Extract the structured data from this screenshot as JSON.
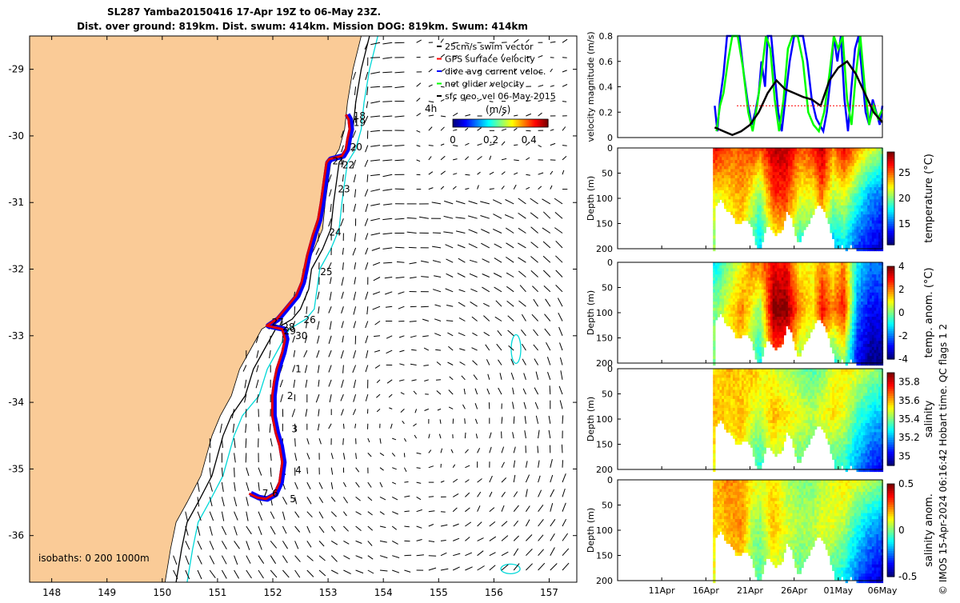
{
  "header": {
    "title_line1": "SL287 Yamba20150416 17-Apr 19Z to 06-May 23Z.",
    "title_line2": "Dist. over ground: 819km. Dist. swum: 414km. Mission DOG: 819km. Swum: 414km"
  },
  "credit": "© IMOS 15-Apr-2024 06:16:42 Hobart time. QC flags 1  2",
  "colors": {
    "land": "#FACB97",
    "isobath_200": "#000000",
    "isobath_1000": "#00D8D8",
    "track_blue": "#0000FF",
    "track_red": "#E00000",
    "gps": "#FF0000",
    "dive_avg": "#0000FF",
    "net_glider": "#00FF00",
    "sfc_geo": "#000000"
  },
  "chart_data": [
    {
      "type": "map",
      "name": "glider-track-map",
      "xlim": [
        147.6,
        157.5
      ],
      "ylim": [
        -36.7,
        -28.5
      ],
      "x_ticks": [
        148,
        149,
        150,
        151,
        152,
        153,
        154,
        155,
        156,
        157
      ],
      "y_ticks": [
        -29,
        -30,
        -31,
        -32,
        -33,
        -34,
        -35,
        -36
      ],
      "legend": [
        "25cm/s swim vector",
        "GPS surface velocity",
        "dive avg current veloc.",
        "net glider velocity",
        "sfc geo. vel 06-May-2015"
      ],
      "colorbar": {
        "label": "(m/s)",
        "ticks": [
          "0",
          "0.2",
          "0.4"
        ],
        "range": [
          0,
          0.5
        ]
      },
      "isobaths_label": "isobaths: 0   200  1000m",
      "extra_label": "4h",
      "day_labels": [
        {
          "t": "18",
          "lon": 153.4,
          "lat": -29.7
        },
        {
          "t": "19",
          "lon": 153.4,
          "lat": -29.8
        },
        {
          "t": "20",
          "lon": 153.34,
          "lat": -30.17
        },
        {
          "t": "21",
          "lon": 153.02,
          "lat": -30.38
        },
        {
          "t": "22",
          "lon": 153.2,
          "lat": -30.44
        },
        {
          "t": "23",
          "lon": 153.12,
          "lat": -30.8
        },
        {
          "t": "24",
          "lon": 152.96,
          "lat": -31.45
        },
        {
          "t": "25",
          "lon": 152.8,
          "lat": -32.04
        },
        {
          "t": "26",
          "lon": 152.5,
          "lat": -32.76
        },
        {
          "t": "27",
          "lon": 151.92,
          "lat": -32.8
        },
        {
          "t": "28",
          "lon": 152.12,
          "lat": -32.87
        },
        {
          "t": "29",
          "lon": 152.14,
          "lat": -32.93
        },
        {
          "t": "30",
          "lon": 152.35,
          "lat": -33.0
        },
        {
          "t": "1",
          "lon": 152.35,
          "lat": -33.5
        },
        {
          "t": "2",
          "lon": 152.2,
          "lat": -33.9
        },
        {
          "t": "3",
          "lon": 152.28,
          "lat": -34.4
        },
        {
          "t": "4",
          "lon": 152.35,
          "lat": -35.02
        },
        {
          "t": "5",
          "lon": 152.25,
          "lat": -35.45
        },
        {
          "t": "6",
          "lon": 151.93,
          "lat": -35.37
        },
        {
          "t": "7",
          "lon": 151.75,
          "lat": -35.37
        }
      ],
      "track": [
        [
          153.35,
          -29.68
        ],
        [
          153.4,
          -29.75
        ],
        [
          153.42,
          -29.9
        ],
        [
          153.38,
          -30.05
        ],
        [
          153.35,
          -30.2
        ],
        [
          153.28,
          -30.3
        ],
        [
          153.05,
          -30.35
        ],
        [
          153.0,
          -30.4
        ],
        [
          152.95,
          -30.7
        ],
        [
          152.9,
          -31.0
        ],
        [
          152.85,
          -31.25
        ],
        [
          152.75,
          -31.5
        ],
        [
          152.65,
          -31.8
        ],
        [
          152.6,
          -32.0
        ],
        [
          152.55,
          -32.2
        ],
        [
          152.45,
          -32.4
        ],
        [
          152.25,
          -32.6
        ],
        [
          152.1,
          -32.75
        ],
        [
          151.92,
          -32.85
        ],
        [
          152.2,
          -32.9
        ],
        [
          152.25,
          -33.05
        ],
        [
          152.2,
          -33.25
        ],
        [
          152.1,
          -33.5
        ],
        [
          152.05,
          -33.7
        ],
        [
          152.02,
          -33.9
        ],
        [
          152.02,
          -34.2
        ],
        [
          152.08,
          -34.45
        ],
        [
          152.15,
          -34.65
        ],
        [
          152.2,
          -34.9
        ],
        [
          152.15,
          -35.2
        ],
        [
          152.05,
          -35.38
        ],
        [
          151.9,
          -35.45
        ],
        [
          151.75,
          -35.43
        ],
        [
          151.6,
          -35.37
        ]
      ]
    },
    {
      "type": "line",
      "name": "velocity-magnitude",
      "ylabel": "velocity magnitude (m/s)",
      "xlim": [
        6,
        36
      ],
      "ylim": [
        0,
        0.8
      ],
      "y_ticks": [
        "0",
        "0.2",
        "0.4",
        "0.6",
        "0.8"
      ],
      "series": [
        {
          "color": "#0000FF",
          "x": [
            17.0,
            17.3,
            17.6,
            18.0,
            18.4,
            18.8,
            19.2,
            19.8,
            20.3,
            20.8,
            21.2,
            21.6,
            22.0,
            22.3,
            22.7,
            23.0,
            23.4,
            23.8,
            24.2,
            24.6,
            25.0,
            25.5,
            26.0,
            26.5,
            27.0,
            27.5,
            28.0,
            28.5,
            28.9,
            29.3,
            29.7,
            30.1,
            30.5,
            30.9,
            31.3,
            31.7,
            32.1,
            32.5,
            32.9,
            33.3,
            33.7,
            34.1,
            34.5,
            34.9,
            35.3,
            35.7,
            36.0
          ],
          "y": [
            0.25,
            0.05,
            0.3,
            0.5,
            0.8,
            0.8,
            0.8,
            0.8,
            0.5,
            0.25,
            0.1,
            0.2,
            0.35,
            0.6,
            0.4,
            0.8,
            0.8,
            0.5,
            0.2,
            0.05,
            0.3,
            0.6,
            0.8,
            0.8,
            0.8,
            0.6,
            0.3,
            0.15,
            0.1,
            0.05,
            0.2,
            0.45,
            0.8,
            0.6,
            0.8,
            0.3,
            0.05,
            0.4,
            0.7,
            0.8,
            0.5,
            0.2,
            0.1,
            0.3,
            0.2,
            0.1,
            0.25
          ]
        },
        {
          "color": "#00FF00",
          "x": [
            17.2,
            17.6,
            18.0,
            18.5,
            19.0,
            19.6,
            20.2,
            20.8,
            21.3,
            21.8,
            22.3,
            22.8,
            23.3,
            23.8,
            24.3,
            24.8,
            25.3,
            25.8,
            26.4,
            27.0,
            27.6,
            28.2,
            28.8,
            29.4,
            30.0,
            30.5,
            31.0,
            31.5,
            32.0,
            32.5,
            33.0,
            33.5,
            34.0,
            34.5,
            35.0,
            35.5,
            36.0
          ],
          "y": [
            0.05,
            0.25,
            0.35,
            0.6,
            0.8,
            0.8,
            0.55,
            0.2,
            0.05,
            0.25,
            0.5,
            0.8,
            0.7,
            0.3,
            0.05,
            0.3,
            0.7,
            0.8,
            0.8,
            0.6,
            0.2,
            0.1,
            0.05,
            0.2,
            0.5,
            0.8,
            0.7,
            0.8,
            0.3,
            0.1,
            0.5,
            0.8,
            0.4,
            0.1,
            0.25,
            0.15,
            0.22
          ]
        },
        {
          "color": "#000000",
          "x": [
            17.0,
            18.0,
            19.0,
            20.0,
            21.0,
            22.0,
            23.0,
            24.0,
            25.0,
            26.0,
            27.0,
            28.0,
            29.0,
            30.0,
            31.0,
            32.0,
            33.0,
            34.0,
            35.0,
            36.0
          ],
          "y": [
            0.08,
            0.05,
            0.02,
            0.05,
            0.1,
            0.2,
            0.35,
            0.45,
            0.38,
            0.35,
            0.32,
            0.3,
            0.25,
            0.45,
            0.55,
            0.6,
            0.5,
            0.35,
            0.2,
            0.12
          ]
        },
        {
          "color": "#FF0000",
          "dotted": true,
          "x": [
            19.5,
            20.5,
            21.5,
            22.5,
            23.5,
            24.5,
            25.5,
            26.5,
            27.5,
            28.5,
            29.5,
            30.5,
            31.5,
            32.5,
            33.5,
            34.5,
            35.5
          ],
          "y": [
            0.25,
            0.25,
            0.25,
            0.25,
            0.25,
            0.25,
            0.25,
            0.25,
            0.25,
            0.25,
            0.25,
            0.25,
            0.25,
            0.25,
            0.25,
            0.25,
            0.25
          ]
        }
      ]
    },
    {
      "type": "heatmap",
      "name": "temperature-section",
      "ylabel": "Depth (m)",
      "cbar_label": "temperature (°C)",
      "cbar_ticks": [
        "25",
        "20",
        "15"
      ],
      "vmin": 11,
      "vmax": 29,
      "cmap": "jet"
    },
    {
      "type": "heatmap",
      "name": "temperature-anomaly-section",
      "ylabel": "Depth (m)",
      "cbar_label": "temp. anom. (°C)",
      "cbar_ticks": [
        "4",
        "2",
        "0",
        "-2",
        "-4"
      ],
      "vmin": -4,
      "vmax": 4,
      "cmap": "jet"
    },
    {
      "type": "heatmap",
      "name": "salinity-section",
      "ylabel": "Depth (m)",
      "cbar_label": "salinity",
      "cbar_ticks": [
        "35.8",
        "35.6",
        "35.4",
        "35.2",
        "35"
      ],
      "vmin": 34.9,
      "vmax": 35.9,
      "cmap": "jet"
    },
    {
      "type": "heatmap",
      "name": "salinity-anomaly-section",
      "ylabel": "Depth (m)",
      "cbar_label": "salinity anom.",
      "cbar_ticks": [
        "0.5",
        "0",
        "-0.5"
      ],
      "vmin": -0.5,
      "vmax": 0.5,
      "cmap": "jet"
    }
  ],
  "sections": {
    "depth_ticks": [
      "0",
      "50",
      "100",
      "150",
      "200"
    ],
    "time_ticks": [
      "11Apr",
      "16Apr",
      "21Apr",
      "26Apr",
      "01May",
      "06May"
    ],
    "time_tick_days": [
      11,
      16,
      21,
      26,
      31,
      36
    ],
    "xlim_days": [
      6,
      36
    ],
    "data_start_day": 16.8,
    "max_depth": [
      [
        17,
        110
      ],
      [
        17.6,
        100
      ],
      [
        18.2,
        120
      ],
      [
        18.8,
        130
      ],
      [
        19.5,
        150
      ],
      [
        20.3,
        140
      ],
      [
        21.0,
        150
      ],
      [
        21.6,
        190
      ],
      [
        22.0,
        200
      ],
      [
        22.3,
        185
      ],
      [
        22.7,
        150
      ],
      [
        23.3,
        160
      ],
      [
        23.9,
        170
      ],
      [
        24.5,
        160
      ],
      [
        25.1,
        120
      ],
      [
        25.6,
        140
      ],
      [
        26.0,
        170
      ],
      [
        26.4,
        190
      ],
      [
        26.9,
        165
      ],
      [
        27.4,
        150
      ],
      [
        28.0,
        130
      ],
      [
        28.6,
        110
      ],
      [
        29.2,
        120
      ],
      [
        29.8,
        150
      ],
      [
        30.3,
        180
      ],
      [
        30.7,
        200
      ],
      [
        31.2,
        190
      ],
      [
        31.8,
        200
      ],
      [
        32.4,
        190
      ],
      [
        33.0,
        200
      ],
      [
        33.6,
        200
      ],
      [
        34.3,
        200
      ],
      [
        35.0,
        200
      ],
      [
        35.6,
        200
      ]
    ],
    "temp_samples": [
      {
        "d": 17.0,
        "s": 27,
        "m": 22,
        "b": 20
      },
      {
        "d": 18.5,
        "s": 25,
        "m": 23,
        "b": 21
      },
      {
        "d": 20.0,
        "s": 25,
        "m": 24,
        "b": 22
      },
      {
        "d": 21.0,
        "s": 26,
        "m": 22,
        "b": 19
      },
      {
        "d": 22.0,
        "s": 25,
        "m": 20,
        "b": 17
      },
      {
        "d": 23.5,
        "s": 28,
        "m": 26,
        "b": 21
      },
      {
        "d": 25.0,
        "s": 28,
        "m": 26,
        "b": 22
      },
      {
        "d": 26.5,
        "s": 25,
        "m": 22,
        "b": 18
      },
      {
        "d": 28.0,
        "s": 26,
        "m": 22,
        "b": 19
      },
      {
        "d": 29.0,
        "s": 28,
        "m": 25,
        "b": 20
      },
      {
        "d": 30.3,
        "s": 24,
        "m": 21,
        "b": 16
      },
      {
        "d": 31.5,
        "s": 27,
        "m": 22,
        "b": 17
      },
      {
        "d": 33.0,
        "s": 24,
        "m": 19,
        "b": 14
      },
      {
        "d": 34.5,
        "s": 22,
        "m": 16,
        "b": 13
      },
      {
        "d": 36.0,
        "s": 20,
        "m": 15,
        "b": 12
      }
    ],
    "tanom_samples": [
      {
        "d": 17.0,
        "s": -1,
        "m": 0,
        "b": 0
      },
      {
        "d": 18.5,
        "s": 0,
        "m": 1,
        "b": 1
      },
      {
        "d": 20.0,
        "s": 1,
        "m": 2,
        "b": 1
      },
      {
        "d": 21.0,
        "s": 2,
        "m": 1,
        "b": 0
      },
      {
        "d": 22.0,
        "s": 2,
        "m": 0,
        "b": -1
      },
      {
        "d": 23.5,
        "s": 3,
        "m": 4,
        "b": 2
      },
      {
        "d": 25.0,
        "s": 3,
        "m": 4,
        "b": 2
      },
      {
        "d": 26.5,
        "s": 1,
        "m": 2,
        "b": 0
      },
      {
        "d": 28.0,
        "s": 1,
        "m": 1,
        "b": 0
      },
      {
        "d": 29.0,
        "s": 2,
        "m": 3,
        "b": 1
      },
      {
        "d": 30.3,
        "s": 1,
        "m": 2,
        "b": -1
      },
      {
        "d": 31.5,
        "s": 2,
        "m": 3,
        "b": 0
      },
      {
        "d": 33.0,
        "s": -1,
        "m": -2,
        "b": -3
      },
      {
        "d": 34.5,
        "s": -2,
        "m": -3,
        "b": -4
      },
      {
        "d": 36.0,
        "s": -2,
        "m": -3,
        "b": -4
      }
    ],
    "sal_samples": [
      {
        "d": 17.0,
        "s": 35.55,
        "m": 35.6,
        "b": 35.5
      },
      {
        "d": 18.5,
        "s": 35.6,
        "m": 35.55,
        "b": 35.5
      },
      {
        "d": 20.0,
        "s": 35.55,
        "m": 35.6,
        "b": 35.5
      },
      {
        "d": 21.0,
        "s": 35.6,
        "m": 35.5,
        "b": 35.35
      },
      {
        "d": 22.0,
        "s": 35.55,
        "m": 35.45,
        "b": 35.3
      },
      {
        "d": 23.5,
        "s": 35.5,
        "m": 35.6,
        "b": 35.45
      },
      {
        "d": 25.0,
        "s": 35.45,
        "m": 35.55,
        "b": 35.4
      },
      {
        "d": 26.5,
        "s": 35.4,
        "m": 35.5,
        "b": 35.35
      },
      {
        "d": 28.0,
        "s": 35.35,
        "m": 35.45,
        "b": 35.35
      },
      {
        "d": 29.0,
        "s": 35.4,
        "m": 35.5,
        "b": 35.4
      },
      {
        "d": 30.3,
        "s": 35.5,
        "m": 35.55,
        "b": 35.3
      },
      {
        "d": 31.5,
        "s": 35.55,
        "m": 35.5,
        "b": 35.3
      },
      {
        "d": 33.0,
        "s": 35.5,
        "m": 35.35,
        "b": 35.15
      },
      {
        "d": 34.5,
        "s": 35.45,
        "m": 35.25,
        "b": 35.05
      },
      {
        "d": 36.0,
        "s": 35.4,
        "m": 35.2,
        "b": 35.0
      }
    ],
    "sanom_samples": [
      {
        "d": 17.0,
        "s": 0.2,
        "m": 0.15,
        "b": 0.1
      },
      {
        "d": 18.5,
        "s": 0.25,
        "m": 0.2,
        "b": 0.15
      },
      {
        "d": 20.0,
        "s": 0.2,
        "m": 0.25,
        "b": 0.1
      },
      {
        "d": 21.0,
        "s": 0.15,
        "m": 0.05,
        "b": 0.0
      },
      {
        "d": 22.0,
        "s": 0.1,
        "m": 0.0,
        "b": -0.05
      },
      {
        "d": 23.5,
        "s": 0.15,
        "m": 0.2,
        "b": 0.05
      },
      {
        "d": 25.0,
        "s": 0.05,
        "m": 0.1,
        "b": 0.0
      },
      {
        "d": 26.5,
        "s": 0.0,
        "m": 0.05,
        "b": -0.05
      },
      {
        "d": 28.0,
        "s": 0.0,
        "m": 0.05,
        "b": 0.0
      },
      {
        "d": 29.0,
        "s": 0.05,
        "m": 0.1,
        "b": 0.0
      },
      {
        "d": 30.3,
        "s": 0.1,
        "m": 0.1,
        "b": -0.1
      },
      {
        "d": 31.5,
        "s": 0.15,
        "m": 0.05,
        "b": -0.15
      },
      {
        "d": 33.0,
        "s": 0.1,
        "m": -0.1,
        "b": -0.3
      },
      {
        "d": 34.5,
        "s": 0.05,
        "m": -0.2,
        "b": -0.4
      },
      {
        "d": 36.0,
        "s": 0.0,
        "m": -0.25,
        "b": -0.45
      }
    ]
  }
}
